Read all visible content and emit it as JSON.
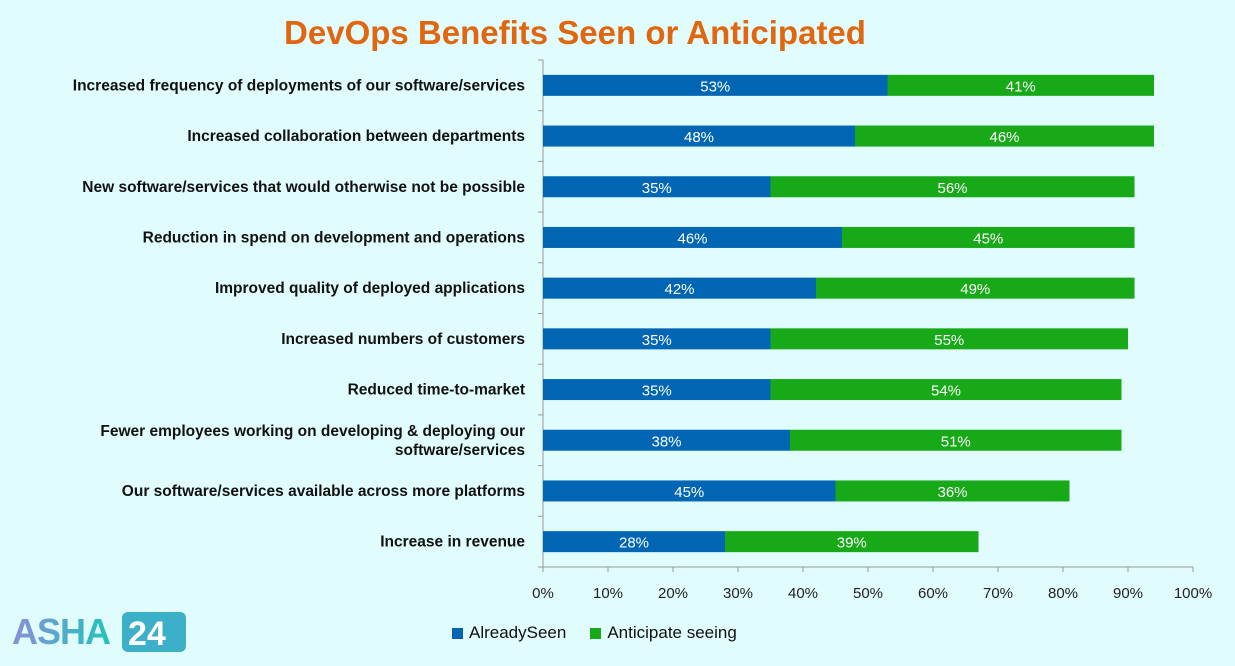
{
  "chart_data": {
    "type": "bar",
    "orientation": "horizontal",
    "stacked": true,
    "title": "DevOps Benefits Seen or Anticipated",
    "categories": [
      [
        "Increased frequency of deployments of our software/services"
      ],
      [
        "Increased collaboration between departments"
      ],
      [
        "New software/services that would otherwise not be possible"
      ],
      [
        "Reduction in spend on development and operations"
      ],
      [
        "Improved quality of deployed applications"
      ],
      [
        "Increased numbers of customers"
      ],
      [
        "Reduced time-to-market"
      ],
      [
        "Fewer employees working on developing & deploying our",
        "software/services"
      ],
      [
        "Our software/services available across more platforms"
      ],
      [
        "Increase in revenue"
      ]
    ],
    "series": [
      {
        "name": "AlreadySeen",
        "color": "#0066b3",
        "values": [
          53,
          48,
          35,
          46,
          42,
          35,
          35,
          38,
          45,
          28
        ]
      },
      {
        "name": "Anticipate seeing",
        "color": "#17a917",
        "values": [
          41,
          46,
          56,
          45,
          49,
          55,
          54,
          51,
          36,
          39
        ]
      }
    ],
    "xlim": [
      0,
      100
    ],
    "xticks": [
      "0%",
      "10%",
      "20%",
      "30%",
      "40%",
      "50%",
      "60%",
      "70%",
      "80%",
      "90%",
      "100%"
    ],
    "grid": false,
    "legend": "bottom"
  },
  "logo": {
    "text": "ASHA24"
  }
}
